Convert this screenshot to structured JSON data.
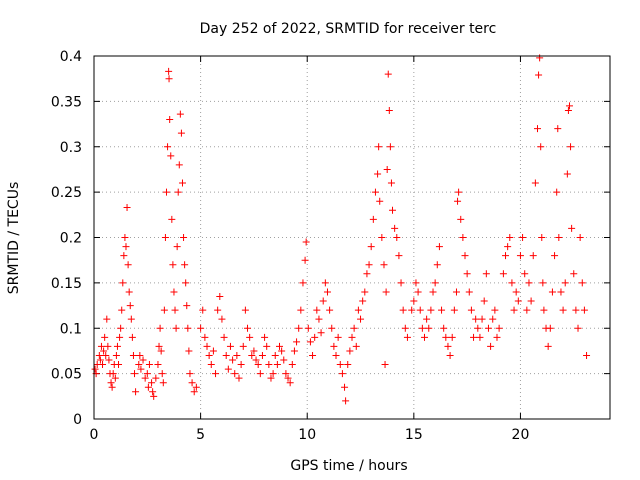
{
  "chart_data": {
    "type": "scatter",
    "title": "Day 252 of 2022, SRMTID for receiver terc",
    "xlabel": "GPS time / hours",
    "ylabel": "SRMTID / TECUs",
    "xlim": [
      0,
      24.2
    ],
    "ylim": [
      0,
      0.4
    ],
    "grid": true,
    "x_ticks": [
      {
        "value": 0,
        "label": "0"
      },
      {
        "value": 5,
        "label": "5"
      },
      {
        "value": 10,
        "label": "10"
      },
      {
        "value": 15,
        "label": "15"
      },
      {
        "value": 20,
        "label": "20"
      }
    ],
    "y_ticks": [
      {
        "value": 0,
        "label": "0"
      },
      {
        "value": 0.05,
        "label": "0.05"
      },
      {
        "value": 0.1,
        "label": "0.1"
      },
      {
        "value": 0.15,
        "label": "0.15"
      },
      {
        "value": 0.2,
        "label": "0.2"
      },
      {
        "value": 0.25,
        "label": "0.25"
      },
      {
        "value": 0.3,
        "label": "0.3"
      },
      {
        "value": 0.35,
        "label": "0.35"
      },
      {
        "value": 0.4,
        "label": "0.4"
      }
    ],
    "marker": "+",
    "color": "#ff0000",
    "series": [
      {
        "name": "SRMTID",
        "points": [
          [
            0.05,
            0.055
          ],
          [
            0.1,
            0.05
          ],
          [
            0.15,
            0.06
          ],
          [
            0.25,
            0.07
          ],
          [
            0.3,
            0.065
          ],
          [
            0.35,
            0.08
          ],
          [
            0.4,
            0.06
          ],
          [
            0.45,
            0.075
          ],
          [
            0.5,
            0.09
          ],
          [
            0.55,
            0.07
          ],
          [
            0.6,
            0.11
          ],
          [
            0.65,
            0.08
          ],
          [
            0.7,
            0.065
          ],
          [
            0.75,
            0.05
          ],
          [
            0.8,
            0.04
          ],
          [
            0.85,
            0.035
          ],
          [
            0.9,
            0.05
          ],
          [
            0.95,
            0.06
          ],
          [
            1.0,
            0.045
          ],
          [
            1.05,
            0.07
          ],
          [
            1.1,
            0.08
          ],
          [
            1.15,
            0.06
          ],
          [
            1.2,
            0.09
          ],
          [
            1.25,
            0.1
          ],
          [
            1.3,
            0.12
          ],
          [
            1.35,
            0.15
          ],
          [
            1.4,
            0.18
          ],
          [
            1.45,
            0.2
          ],
          [
            1.5,
            0.19
          ],
          [
            1.55,
            0.233
          ],
          [
            1.6,
            0.17
          ],
          [
            1.65,
            0.14
          ],
          [
            1.7,
            0.125
          ],
          [
            1.75,
            0.11
          ],
          [
            1.8,
            0.09
          ],
          [
            1.85,
            0.07
          ],
          [
            1.9,
            0.05
          ],
          [
            1.95,
            0.03
          ],
          [
            2.1,
            0.06
          ],
          [
            2.15,
            0.07
          ],
          [
            2.2,
            0.055
          ],
          [
            2.3,
            0.065
          ],
          [
            2.4,
            0.045
          ],
          [
            2.5,
            0.05
          ],
          [
            2.55,
            0.035
          ],
          [
            2.6,
            0.06
          ],
          [
            2.7,
            0.04
          ],
          [
            2.75,
            0.03
          ],
          [
            2.8,
            0.025
          ],
          [
            2.9,
            0.045
          ],
          [
            3.0,
            0.06
          ],
          [
            3.05,
            0.08
          ],
          [
            3.1,
            0.1
          ],
          [
            3.15,
            0.075
          ],
          [
            3.2,
            0.05
          ],
          [
            3.25,
            0.04
          ],
          [
            3.3,
            0.12
          ],
          [
            3.35,
            0.2
          ],
          [
            3.4,
            0.25
          ],
          [
            3.45,
            0.3
          ],
          [
            3.5,
            0.383
          ],
          [
            3.52,
            0.375
          ],
          [
            3.55,
            0.33
          ],
          [
            3.6,
            0.29
          ],
          [
            3.65,
            0.22
          ],
          [
            3.7,
            0.17
          ],
          [
            3.75,
            0.14
          ],
          [
            3.8,
            0.12
          ],
          [
            3.85,
            0.1
          ],
          [
            3.9,
            0.19
          ],
          [
            3.95,
            0.25
          ],
          [
            4.0,
            0.28
          ],
          [
            4.05,
            0.336
          ],
          [
            4.1,
            0.315
          ],
          [
            4.15,
            0.26
          ],
          [
            4.2,
            0.2
          ],
          [
            4.25,
            0.17
          ],
          [
            4.3,
            0.15
          ],
          [
            4.35,
            0.125
          ],
          [
            4.4,
            0.1
          ],
          [
            4.45,
            0.075
          ],
          [
            4.5,
            0.05
          ],
          [
            4.6,
            0.04
          ],
          [
            4.7,
            0.03
          ],
          [
            4.8,
            0.035
          ],
          [
            5.0,
            0.1
          ],
          [
            5.1,
            0.12
          ],
          [
            5.2,
            0.09
          ],
          [
            5.3,
            0.08
          ],
          [
            5.4,
            0.07
          ],
          [
            5.5,
            0.06
          ],
          [
            5.6,
            0.075
          ],
          [
            5.7,
            0.05
          ],
          [
            5.8,
            0.12
          ],
          [
            5.9,
            0.135
          ],
          [
            6.0,
            0.11
          ],
          [
            6.1,
            0.09
          ],
          [
            6.2,
            0.07
          ],
          [
            6.3,
            0.055
          ],
          [
            6.4,
            0.08
          ],
          [
            6.5,
            0.065
          ],
          [
            6.6,
            0.05
          ],
          [
            6.7,
            0.07
          ],
          [
            6.8,
            0.045
          ],
          [
            6.9,
            0.06
          ],
          [
            7.0,
            0.08
          ],
          [
            7.1,
            0.12
          ],
          [
            7.2,
            0.1
          ],
          [
            7.3,
            0.09
          ],
          [
            7.4,
            0.07
          ],
          [
            7.5,
            0.075
          ],
          [
            7.6,
            0.065
          ],
          [
            7.7,
            0.06
          ],
          [
            7.8,
            0.05
          ],
          [
            7.9,
            0.07
          ],
          [
            8.0,
            0.09
          ],
          [
            8.1,
            0.08
          ],
          [
            8.2,
            0.06
          ],
          [
            8.3,
            0.045
          ],
          [
            8.4,
            0.05
          ],
          [
            8.5,
            0.07
          ],
          [
            8.6,
            0.06
          ],
          [
            8.7,
            0.08
          ],
          [
            8.8,
            0.075
          ],
          [
            8.9,
            0.065
          ],
          [
            9.0,
            0.05
          ],
          [
            9.1,
            0.045
          ],
          [
            9.2,
            0.04
          ],
          [
            9.3,
            0.06
          ],
          [
            9.4,
            0.075
          ],
          [
            9.5,
            0.085
          ],
          [
            9.6,
            0.1
          ],
          [
            9.7,
            0.12
          ],
          [
            9.8,
            0.15
          ],
          [
            9.9,
            0.175
          ],
          [
            9.95,
            0.195
          ],
          [
            10.05,
            0.1
          ],
          [
            10.15,
            0.085
          ],
          [
            10.25,
            0.07
          ],
          [
            10.35,
            0.09
          ],
          [
            10.45,
            0.12
          ],
          [
            10.55,
            0.11
          ],
          [
            10.65,
            0.095
          ],
          [
            10.75,
            0.13
          ],
          [
            10.85,
            0.15
          ],
          [
            10.95,
            0.14
          ],
          [
            11.05,
            0.12
          ],
          [
            11.15,
            0.1
          ],
          [
            11.25,
            0.08
          ],
          [
            11.35,
            0.07
          ],
          [
            11.45,
            0.09
          ],
          [
            11.55,
            0.06
          ],
          [
            11.65,
            0.05
          ],
          [
            11.75,
            0.035
          ],
          [
            11.8,
            0.02
          ],
          [
            11.9,
            0.06
          ],
          [
            12.0,
            0.075
          ],
          [
            12.1,
            0.09
          ],
          [
            12.2,
            0.1
          ],
          [
            12.3,
            0.08
          ],
          [
            12.4,
            0.12
          ],
          [
            12.5,
            0.11
          ],
          [
            12.6,
            0.13
          ],
          [
            12.7,
            0.14
          ],
          [
            12.8,
            0.16
          ],
          [
            12.9,
            0.17
          ],
          [
            13.0,
            0.19
          ],
          [
            13.1,
            0.22
          ],
          [
            13.2,
            0.25
          ],
          [
            13.3,
            0.27
          ],
          [
            13.35,
            0.3
          ],
          [
            13.4,
            0.24
          ],
          [
            13.5,
            0.2
          ],
          [
            13.6,
            0.17
          ],
          [
            13.65,
            0.06
          ],
          [
            13.7,
            0.14
          ],
          [
            13.75,
            0.275
          ],
          [
            13.8,
            0.38
          ],
          [
            13.85,
            0.34
          ],
          [
            13.9,
            0.3
          ],
          [
            13.95,
            0.26
          ],
          [
            14.0,
            0.23
          ],
          [
            14.1,
            0.21
          ],
          [
            14.2,
            0.2
          ],
          [
            14.3,
            0.18
          ],
          [
            14.4,
            0.15
          ],
          [
            14.5,
            0.12
          ],
          [
            14.6,
            0.1
          ],
          [
            14.7,
            0.09
          ],
          [
            14.9,
            0.12
          ],
          [
            15.0,
            0.13
          ],
          [
            15.1,
            0.15
          ],
          [
            15.2,
            0.14
          ],
          [
            15.3,
            0.12
          ],
          [
            15.4,
            0.1
          ],
          [
            15.5,
            0.09
          ],
          [
            15.6,
            0.11
          ],
          [
            15.7,
            0.1
          ],
          [
            15.8,
            0.12
          ],
          [
            15.9,
            0.14
          ],
          [
            16.0,
            0.15
          ],
          [
            16.1,
            0.17
          ],
          [
            16.2,
            0.19
          ],
          [
            16.3,
            0.12
          ],
          [
            16.4,
            0.1
          ],
          [
            16.5,
            0.09
          ],
          [
            16.6,
            0.08
          ],
          [
            16.7,
            0.07
          ],
          [
            16.8,
            0.09
          ],
          [
            16.9,
            0.12
          ],
          [
            17.0,
            0.14
          ],
          [
            17.05,
            0.24
          ],
          [
            17.1,
            0.25
          ],
          [
            17.2,
            0.22
          ],
          [
            17.3,
            0.2
          ],
          [
            17.4,
            0.18
          ],
          [
            17.5,
            0.16
          ],
          [
            17.6,
            0.14
          ],
          [
            17.7,
            0.12
          ],
          [
            17.8,
            0.09
          ],
          [
            17.9,
            0.11
          ],
          [
            18.0,
            0.1
          ],
          [
            18.1,
            0.09
          ],
          [
            18.2,
            0.11
          ],
          [
            18.3,
            0.13
          ],
          [
            18.4,
            0.16
          ],
          [
            18.5,
            0.1
          ],
          [
            18.6,
            0.08
          ],
          [
            18.7,
            0.11
          ],
          [
            18.8,
            0.12
          ],
          [
            18.9,
            0.09
          ],
          [
            19.0,
            0.1
          ],
          [
            19.2,
            0.16
          ],
          [
            19.3,
            0.18
          ],
          [
            19.4,
            0.19
          ],
          [
            19.5,
            0.2
          ],
          [
            19.6,
            0.15
          ],
          [
            19.7,
            0.12
          ],
          [
            19.8,
            0.14
          ],
          [
            19.9,
            0.13
          ],
          [
            20.0,
            0.18
          ],
          [
            20.1,
            0.2
          ],
          [
            20.2,
            0.16
          ],
          [
            20.3,
            0.12
          ],
          [
            20.4,
            0.15
          ],
          [
            20.5,
            0.13
          ],
          [
            20.6,
            0.18
          ],
          [
            20.7,
            0.26
          ],
          [
            20.8,
            0.32
          ],
          [
            20.85,
            0.379
          ],
          [
            20.9,
            0.398
          ],
          [
            20.95,
            0.3
          ],
          [
            21.0,
            0.2
          ],
          [
            21.05,
            0.15
          ],
          [
            21.1,
            0.12
          ],
          [
            21.2,
            0.1
          ],
          [
            21.3,
            0.08
          ],
          [
            21.4,
            0.1
          ],
          [
            21.5,
            0.14
          ],
          [
            21.6,
            0.18
          ],
          [
            21.7,
            0.25
          ],
          [
            21.75,
            0.32
          ],
          [
            21.8,
            0.2
          ],
          [
            21.9,
            0.14
          ],
          [
            22.0,
            0.12
          ],
          [
            22.1,
            0.15
          ],
          [
            22.2,
            0.27
          ],
          [
            22.25,
            0.34
          ],
          [
            22.3,
            0.345
          ],
          [
            22.35,
            0.3
          ],
          [
            22.4,
            0.21
          ],
          [
            22.5,
            0.16
          ],
          [
            22.6,
            0.12
          ],
          [
            22.7,
            0.1
          ],
          [
            22.8,
            0.2
          ],
          [
            22.9,
            0.15
          ],
          [
            23.0,
            0.12
          ],
          [
            23.1,
            0.07
          ]
        ]
      }
    ]
  }
}
